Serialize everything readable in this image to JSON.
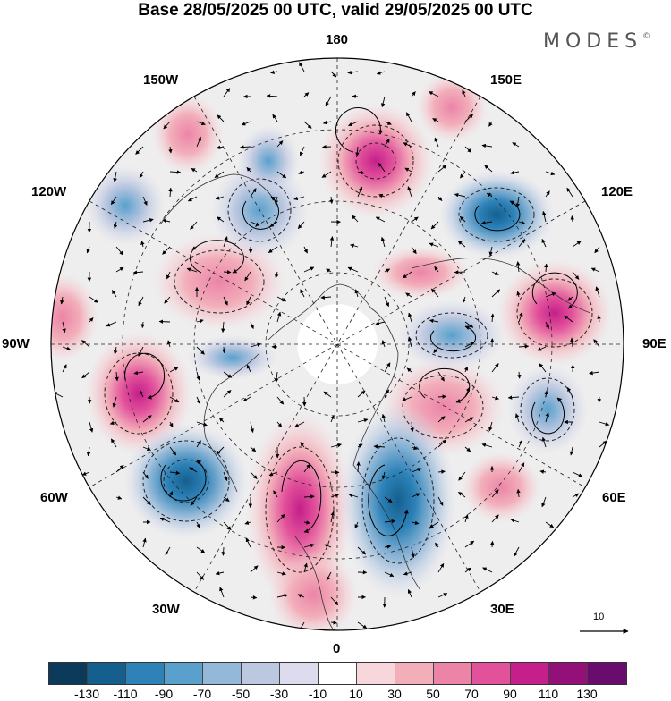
{
  "header": {
    "title": "Base 28/05/2025 00 UTC, valid 29/05/2025 00 UTC",
    "brand": "MODES",
    "brand_mark": "©"
  },
  "map": {
    "projection": "north-polar-stereographic",
    "longitude_labels": {
      "top": "180",
      "bottom": "0",
      "left": "90W",
      "right": "90E",
      "upper_left_1": "150W",
      "upper_left_2": "120W",
      "lower_left_1": "60W",
      "lower_left_2": "30W",
      "upper_right_1": "150E",
      "upper_right_2": "120E",
      "lower_right_1": "60E",
      "lower_right_2": "30E"
    },
    "reference_vector_label": "10"
  },
  "colorbar": {
    "colors": [
      "#0b3a5a",
      "#155f8f",
      "#2d82b8",
      "#5aa0cc",
      "#94b9d8",
      "#bcc8e0",
      "#dcdcee",
      "#ffffff",
      "#f7d7db",
      "#f2afba",
      "#ec84a8",
      "#e2529b",
      "#c41f8a",
      "#931078",
      "#6a0b6e"
    ],
    "tick_labels": [
      "-130",
      "-110",
      "-90",
      "-70",
      "-50",
      "-30",
      "-10",
      "10",
      "30",
      "50",
      "70",
      "90",
      "110",
      "130"
    ]
  }
}
